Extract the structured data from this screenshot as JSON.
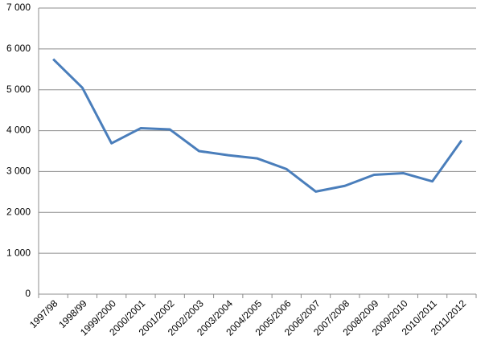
{
  "chart_data": {
    "type": "line",
    "categories": [
      "1997/98",
      "1998/99",
      "1999/2000",
      "2000/2001",
      "2001/2002",
      "2002/2003",
      "2003/2004",
      "2004/2005",
      "2005/2006",
      "2006/2007",
      "2007/2008",
      "2008/2009",
      "2009/2010",
      "2010/2011",
      "2011/2012"
    ],
    "series": [
      {
        "color": "#4a7ebb",
        "values": [
          5750,
          5050,
          3690,
          4060,
          4030,
          3500,
          3400,
          3320,
          3060,
          2510,
          2650,
          2920,
          2960,
          2760,
          3760
        ]
      }
    ],
    "ylim": [
      0,
      7000
    ],
    "yticks": [
      {
        "value": 0,
        "label": "0"
      },
      {
        "value": 1000,
        "label": "1 000"
      },
      {
        "value": 2000,
        "label": "2 000"
      },
      {
        "value": 3000,
        "label": "3 000"
      },
      {
        "value": 4000,
        "label": "4 000"
      },
      {
        "value": 5000,
        "label": "5 000"
      },
      {
        "value": 6000,
        "label": "6 000"
      },
      {
        "value": 7000,
        "label": "7 000"
      }
    ],
    "grid": true
  }
}
